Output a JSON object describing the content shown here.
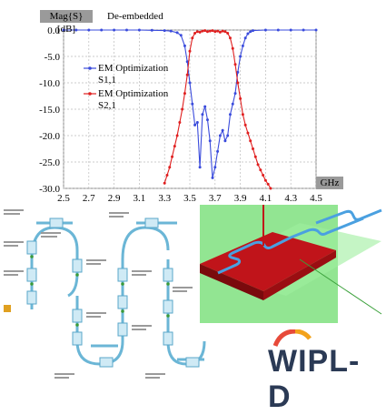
{
  "chart_data": {
    "type": "line",
    "title": "De-embedded",
    "ylabel": "Mag{S} [dB]",
    "xlabel": "GHz",
    "xlim": [
      2.5,
      4.5
    ],
    "ylim": [
      -30.0,
      0.0
    ],
    "xticks": [
      "2.5",
      "2.7",
      "2.9",
      "3.1",
      "3.3",
      "3.5",
      "3.7",
      "3.9",
      "4.1",
      "4.3",
      "4.5"
    ],
    "yticks": [
      "0.0",
      "-5.0",
      "-10.0",
      "-15.0",
      "-20.0",
      "-25.0",
      "-30.0"
    ],
    "grid": true,
    "legend_position": "left",
    "series": [
      {
        "name": "EM Optimization S1,1",
        "color": "#3a4bdc",
        "x": [
          2.5,
          2.6,
          2.7,
          2.8,
          2.9,
          3.0,
          3.1,
          3.2,
          3.3,
          3.35,
          3.4,
          3.43,
          3.46,
          3.48,
          3.5,
          3.52,
          3.54,
          3.56,
          3.58,
          3.6,
          3.62,
          3.64,
          3.66,
          3.68,
          3.7,
          3.72,
          3.74,
          3.76,
          3.78,
          3.8,
          3.82,
          3.84,
          3.86,
          3.88,
          3.9,
          3.92,
          3.94,
          3.96,
          3.98,
          4.0,
          4.1,
          4.2,
          4.3,
          4.4,
          4.5
        ],
        "y": [
          0.0,
          0.0,
          0.0,
          0.0,
          0.0,
          0.0,
          0.0,
          -0.05,
          -0.1,
          -0.2,
          -0.5,
          -1.0,
          -3.0,
          -6.0,
          -10.0,
          -14.0,
          -18.0,
          -17.5,
          -26.0,
          -16.0,
          -14.5,
          -17.0,
          -21.0,
          -28.0,
          -26.0,
          -23.0,
          -20.0,
          -19.0,
          -21.0,
          -20.0,
          -16.0,
          -14.0,
          -12.0,
          -8.0,
          -5.0,
          -3.0,
          -1.5,
          -0.7,
          -0.3,
          -0.1,
          0.0,
          0.0,
          0.0,
          0.0,
          0.0
        ]
      },
      {
        "name": "EM Optimization S2,1",
        "color": "#e01f1f",
        "x": [
          3.3,
          3.32,
          3.34,
          3.36,
          3.38,
          3.4,
          3.42,
          3.44,
          3.46,
          3.48,
          3.5,
          3.52,
          3.54,
          3.56,
          3.58,
          3.6,
          3.62,
          3.64,
          3.66,
          3.68,
          3.7,
          3.72,
          3.74,
          3.76,
          3.78,
          3.8,
          3.82,
          3.84,
          3.86,
          3.88,
          3.9,
          3.92,
          3.94,
          3.96,
          3.98,
          4.0,
          4.02,
          4.04,
          4.06,
          4.08,
          4.1,
          4.12,
          4.14
        ],
        "y": [
          -29.0,
          -27.5,
          -26.0,
          -24.0,
          -22.0,
          -20.0,
          -17.5,
          -15.0,
          -12.0,
          -8.5,
          -4.0,
          -1.5,
          -0.6,
          -0.3,
          -0.4,
          -0.2,
          -0.1,
          -0.3,
          -0.2,
          -0.1,
          -0.3,
          -0.2,
          -0.4,
          -0.2,
          -0.3,
          -0.6,
          -1.5,
          -3.5,
          -6.5,
          -10.0,
          -13.0,
          -16.0,
          -18.0,
          -19.5,
          -21.0,
          -22.5,
          -24.0,
          -25.5,
          -26.5,
          -27.5,
          -28.5,
          -29.2,
          -30.0
        ]
      }
    ]
  },
  "legend": [
    {
      "line1": "EM Optimization",
      "line2": "S1,1",
      "color": "#3a4bdc"
    },
    {
      "line1": "EM Optimization",
      "line2": "S2,1",
      "color": "#e01f1f"
    }
  ],
  "logo": {
    "text": "WIPL-D"
  }
}
